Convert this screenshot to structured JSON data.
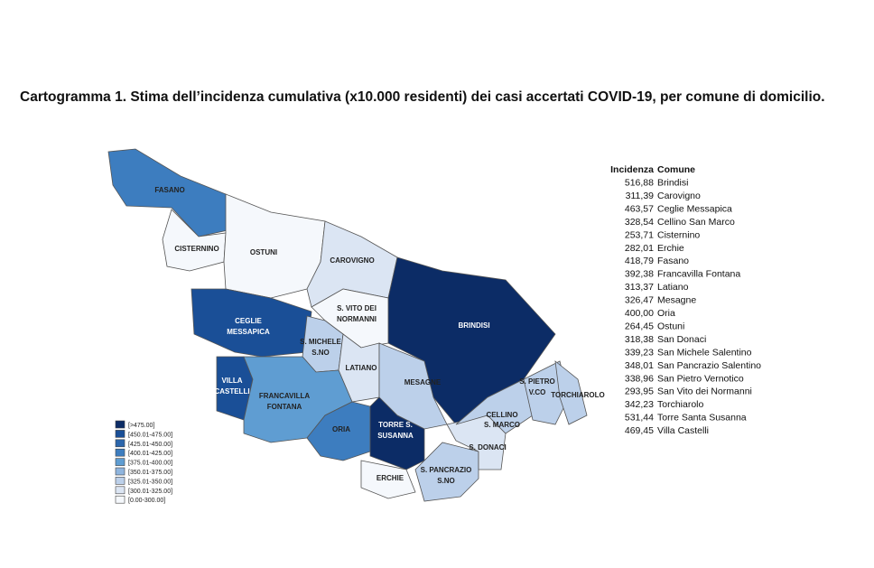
{
  "caption": "Cartogramma 1. Stima dell’incidenza cumulativa (x10.000 residenti) dei casi accertati COVID-19, per comune di domicilio.",
  "legend": {
    "classes": [
      {
        "label": "[>475.00]",
        "color": "#0c2c66"
      },
      {
        "label": "[450.01-475.00]",
        "color": "#1a4f97"
      },
      {
        "label": "[425.01-450.00]",
        "color": "#2b66ac"
      },
      {
        "label": "[400.01-425.00]",
        "color": "#3d7dbf"
      },
      {
        "label": "[375.01-400.00]",
        "color": "#5f9dd2"
      },
      {
        "label": "[350.01-375.00]",
        "color": "#8fb5de"
      },
      {
        "label": "[325.01-350.00]",
        "color": "#bcd0ea"
      },
      {
        "label": "[300.01-325.00]",
        "color": "#dbe5f3"
      },
      {
        "label": "[0.00-300.00]",
        "color": "#f5f8fc"
      }
    ]
  },
  "map_labels": [
    [
      "FASANO"
    ],
    [
      "CISTERNINO"
    ],
    [
      "OSTUNI"
    ],
    [
      "CAROVIGNO"
    ],
    [
      "S. VITO DEI",
      "NORMANNI"
    ],
    [
      "BRINDISI"
    ],
    [
      "CEGLIE",
      "MESSAPICA"
    ],
    [
      "S. MICHELE",
      "S.NO"
    ],
    [
      "LATIANO"
    ],
    [
      "MESAGNE"
    ],
    [
      "VILLA",
      "CASTELLI"
    ],
    [
      "FRANCAVILLA",
      "FONTANA"
    ],
    [
      "ORIA"
    ],
    [
      "TORRE S.",
      "SUSANNA"
    ],
    [
      "ERCHIE"
    ],
    [
      "S. PANCRAZIO",
      "S.NO"
    ],
    [
      "S. DONACI"
    ],
    [
      "CELLINO",
      "S. MARCO"
    ],
    [
      "S. PIETRO",
      "V.CO"
    ],
    [
      "TORCHIAROLO"
    ]
  ],
  "table": {
    "header": [
      "Incidenza",
      "Comune"
    ],
    "rows": [
      [
        "516,88",
        "Brindisi"
      ],
      [
        "311,39",
        "Carovigno"
      ],
      [
        "463,57",
        "Ceglie Messapica"
      ],
      [
        "328,54",
        "Cellino San Marco"
      ],
      [
        "253,71",
        "Cisternino"
      ],
      [
        "282,01",
        "Erchie"
      ],
      [
        "418,79",
        "Fasano"
      ],
      [
        "392,38",
        "Francavilla Fontana"
      ],
      [
        "313,37",
        "Latiano"
      ],
      [
        "326,47",
        "Mesagne"
      ],
      [
        "400,00",
        "Oria"
      ],
      [
        "264,45",
        "Ostuni"
      ],
      [
        "318,38",
        "San Donaci"
      ],
      [
        "339,23",
        "San Michele Salentino"
      ],
      [
        "348,01",
        "San Pancrazio Salentino"
      ],
      [
        "338,96",
        "San Pietro Vernotico"
      ],
      [
        "293,95",
        "San Vito dei Normanni"
      ],
      [
        "342,23",
        "Torchiarolo"
      ],
      [
        "531,44",
        "Torre Santa Susanna"
      ],
      [
        "469,45",
        "Villa Castelli"
      ]
    ]
  }
}
